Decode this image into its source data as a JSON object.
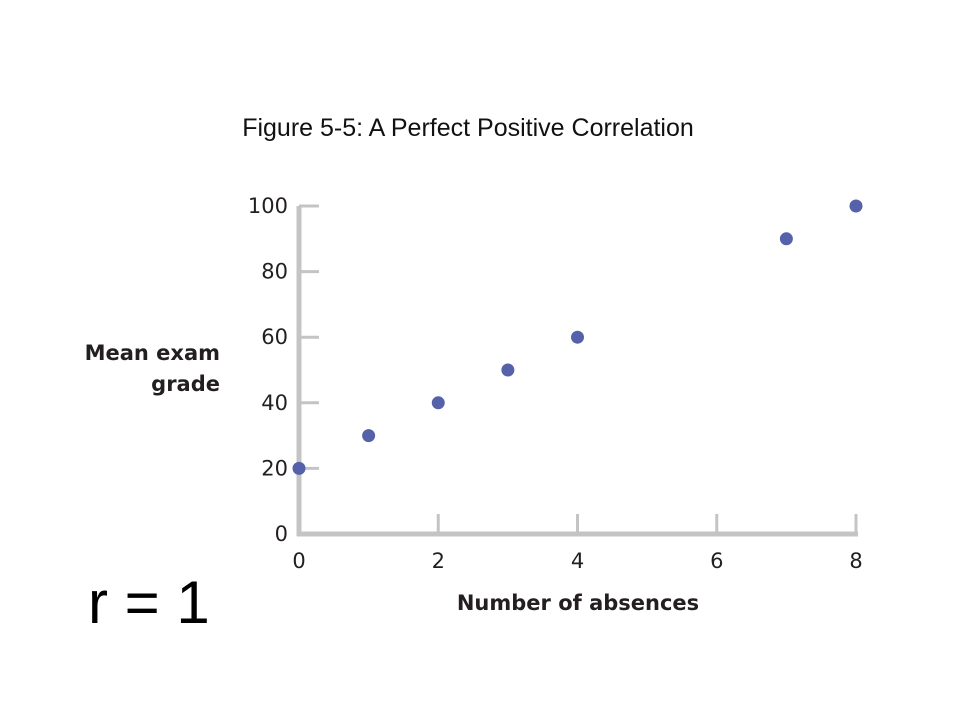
{
  "slide": {
    "title": "Figure 5-5:  A Perfect Positive Correlation",
    "annotation": "r = 1"
  },
  "colors": {
    "point": "#5561a8",
    "axis": "#c4c4c4",
    "text": "#231f20"
  },
  "chart_data": {
    "type": "scatter",
    "title": "Figure 5-5:  A Perfect Positive Correlation",
    "xlabel": "Number of absences",
    "ylabel_lines": [
      "Mean exam",
      "grade"
    ],
    "xlim": [
      0,
      8
    ],
    "ylim": [
      0,
      100
    ],
    "x_ticks": [
      0,
      2,
      4,
      6,
      8
    ],
    "y_ticks": [
      0,
      20,
      40,
      60,
      80,
      100
    ],
    "grid": false,
    "series": [
      {
        "points": [
          {
            "x": 0,
            "y": 20
          },
          {
            "x": 1,
            "y": 30
          },
          {
            "x": 2,
            "y": 40
          },
          {
            "x": 3,
            "y": 50
          },
          {
            "x": 4,
            "y": 60
          },
          {
            "x": 7,
            "y": 90
          },
          {
            "x": 8,
            "y": 100
          }
        ]
      }
    ]
  }
}
